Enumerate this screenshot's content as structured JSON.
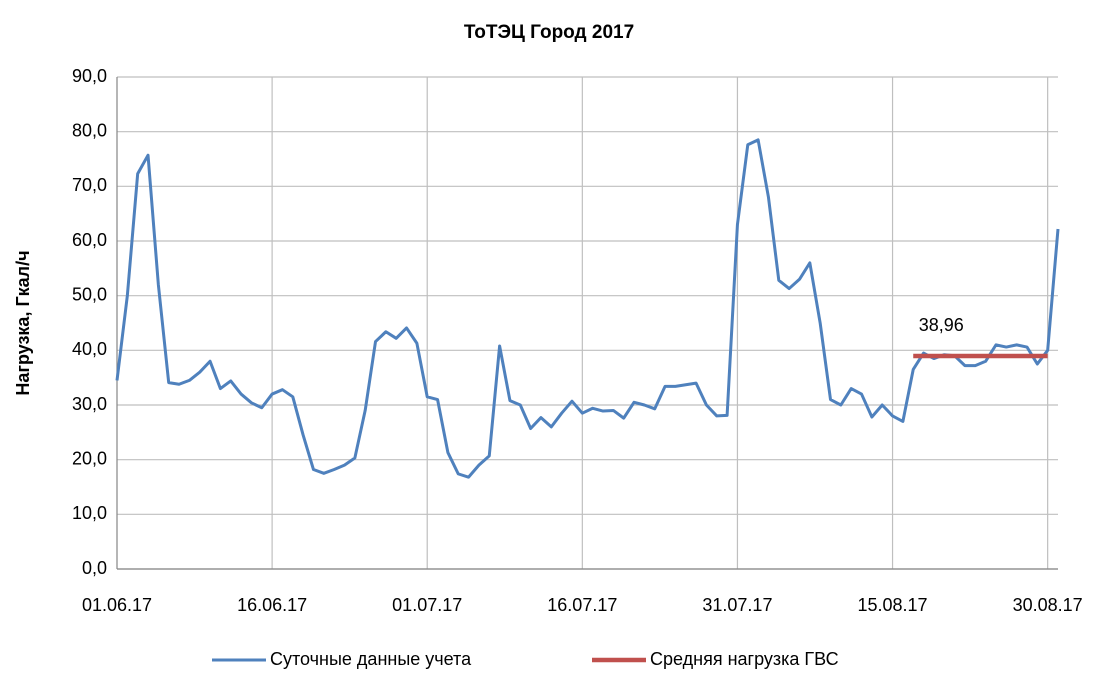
{
  "chart_data": {
    "type": "line",
    "title": "ТоТЭЦ Город 2017",
    "y_label": "Нагрузка, Гкал/ч",
    "categories": [
      "01.06.17",
      null,
      null,
      null,
      null,
      null,
      null,
      null,
      null,
      null,
      null,
      null,
      null,
      null,
      null,
      "16.06.17",
      null,
      null,
      null,
      null,
      null,
      null,
      null,
      null,
      null,
      null,
      null,
      null,
      null,
      null,
      "01.07.17",
      null,
      null,
      null,
      null,
      null,
      null,
      null,
      null,
      null,
      null,
      null,
      null,
      null,
      null,
      "16.07.17",
      null,
      null,
      null,
      null,
      null,
      null,
      null,
      null,
      null,
      null,
      null,
      null,
      null,
      null,
      "31.07.17",
      null,
      null,
      null,
      null,
      null,
      null,
      null,
      null,
      null,
      null,
      null,
      null,
      null,
      null,
      "15.08.17",
      null,
      null,
      null,
      null,
      null,
      null,
      null,
      null,
      null,
      null,
      null,
      null,
      null,
      null,
      "30.08.17",
      null
    ],
    "series": [
      {
        "name": "Суточные данные учета",
        "color": "#4f81bd",
        "values": [
          34.5,
          50,
          72.3,
          75.7,
          52,
          34.1,
          33.8,
          34.5,
          36,
          38,
          33,
          34.4,
          32,
          30.4,
          29.5,
          32,
          32.8,
          31.5,
          24.5,
          18.2,
          17.5,
          18.2,
          19,
          20.3,
          29,
          41.6,
          43.4,
          42.2,
          44.1,
          41.3,
          31.5,
          31,
          21.3,
          17.4,
          16.8,
          19,
          20.7,
          40.8,
          30.8,
          30,
          25.7,
          27.7,
          26,
          28.5,
          30.7,
          28.5,
          29.4,
          28.9,
          29,
          27.6,
          30.5,
          30,
          29.3,
          33.4,
          33.4,
          33.7,
          34,
          30,
          28,
          28.1,
          63,
          77.6,
          78.5,
          68,
          52.8,
          51.3,
          53,
          56,
          45,
          31,
          30,
          33,
          32,
          27.8,
          30,
          28,
          27,
          36.5,
          39.5,
          38.5,
          39.2,
          39,
          37.2,
          37.2,
          38,
          41,
          40.6,
          41,
          40.6,
          37.5,
          40,
          62.2
        ]
      },
      {
        "name": "Средняя нагрузка ГВС",
        "color": "#c0504d",
        "values": [
          null,
          null,
          null,
          null,
          null,
          null,
          null,
          null,
          null,
          null,
          null,
          null,
          null,
          null,
          null,
          null,
          null,
          null,
          null,
          null,
          null,
          null,
          null,
          null,
          null,
          null,
          null,
          null,
          null,
          null,
          null,
          null,
          null,
          null,
          null,
          null,
          null,
          null,
          null,
          null,
          null,
          null,
          null,
          null,
          null,
          null,
          null,
          null,
          null,
          null,
          null,
          null,
          null,
          null,
          null,
          null,
          null,
          null,
          null,
          null,
          null,
          null,
          null,
          null,
          null,
          null,
          null,
          null,
          null,
          null,
          null,
          null,
          null,
          null,
          null,
          null,
          null,
          38.96,
          38.96,
          38.96,
          38.96,
          38.96,
          38.96,
          38.96,
          38.96,
          38.96,
          38.96,
          38.96,
          38.96,
          38.96,
          38.96,
          null
        ],
        "value_labels": [
          null,
          null,
          null,
          null,
          null,
          null,
          null,
          null,
          null,
          null,
          null,
          null,
          null,
          null,
          null,
          null,
          null,
          null,
          null,
          null,
          null,
          null,
          null,
          null,
          null,
          null,
          null,
          null,
          null,
          null,
          null,
          null,
          null,
          null,
          null,
          null,
          null,
          null,
          null,
          null,
          null,
          null,
          null,
          null,
          null,
          null,
          null,
          null,
          null,
          null,
          null,
          null,
          null,
          null,
          null,
          null,
          null,
          null,
          null,
          null,
          null,
          null,
          null,
          null,
          null,
          null,
          null,
          null,
          null,
          null,
          null,
          null,
          null,
          null,
          null,
          null,
          null,
          "38,96",
          null,
          null,
          null,
          null,
          null,
          null,
          null,
          null,
          null,
          null,
          null,
          null,
          null,
          null
        ]
      }
    ],
    "ylim": [
      0,
      90
    ],
    "yticks": [
      {
        "value": 0,
        "label": "0,0"
      },
      {
        "value": 10,
        "label": "10,0"
      },
      {
        "value": 20,
        "label": "20,0"
      },
      {
        "value": 30,
        "label": "30,0"
      },
      {
        "value": 40,
        "label": "40,0"
      },
      {
        "value": 50,
        "label": "50,0"
      },
      {
        "value": 60,
        "label": "60,0"
      },
      {
        "value": 70,
        "label": "70,0"
      },
      {
        "value": 80,
        "label": "80,0"
      },
      {
        "value": 90,
        "label": "90,0"
      }
    ],
    "grid": true,
    "legend": "bottom"
  }
}
